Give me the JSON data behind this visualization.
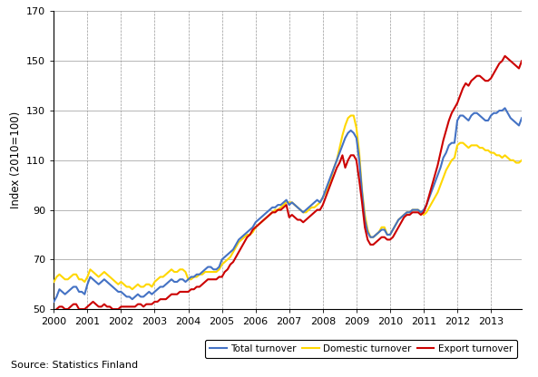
{
  "title": "",
  "ylabel": "Index (2010=100)",
  "ylim": [
    50,
    170
  ],
  "yticks": [
    50,
    70,
    90,
    110,
    130,
    150,
    170
  ],
  "xlim": [
    2000.0,
    2013.92
  ],
  "xticks": [
    2000,
    2001,
    2002,
    2003,
    2004,
    2005,
    2006,
    2007,
    2008,
    2009,
    2010,
    2011,
    2012,
    2013
  ],
  "source_text": "Source: Statistics Finland",
  "legend_labels": [
    "Total turnover",
    "Domestic turnover",
    "Export turnover"
  ],
  "line_colors": [
    "#4472C4",
    "#FFD700",
    "#CC0000"
  ],
  "line_width": 1.5,
  "background_color": "#FFFFFF",
  "total_turnover": [
    53,
    55,
    58,
    57,
    56,
    57,
    58,
    59,
    59,
    57,
    57,
    56,
    60,
    63,
    62,
    61,
    60,
    61,
    62,
    61,
    60,
    59,
    58,
    57,
    57,
    56,
    55,
    55,
    54,
    55,
    56,
    55,
    55,
    56,
    57,
    56,
    57,
    58,
    59,
    59,
    60,
    61,
    62,
    61,
    61,
    62,
    62,
    61,
    62,
    63,
    63,
    64,
    64,
    65,
    66,
    67,
    67,
    66,
    66,
    67,
    70,
    71,
    72,
    73,
    74,
    76,
    78,
    79,
    80,
    81,
    82,
    83,
    85,
    86,
    87,
    88,
    89,
    90,
    91,
    91,
    92,
    92,
    93,
    94,
    92,
    93,
    92,
    91,
    90,
    89,
    90,
    91,
    92,
    93,
    94,
    93,
    95,
    98,
    101,
    104,
    107,
    110,
    113,
    116,
    119,
    121,
    122,
    121,
    119,
    110,
    97,
    86,
    81,
    79,
    79,
    80,
    81,
    82,
    82,
    80,
    80,
    82,
    84,
    86,
    87,
    88,
    89,
    89,
    90,
    90,
    90,
    89,
    90,
    92,
    95,
    98,
    101,
    104,
    107,
    111,
    113,
    116,
    117,
    117,
    126,
    128,
    128,
    127,
    126,
    128,
    129,
    129,
    128,
    127,
    126,
    126,
    128,
    129,
    129,
    130,
    130,
    131,
    129,
    127,
    126,
    125,
    124,
    127
  ],
  "domestic_turnover": [
    61,
    63,
    64,
    63,
    62,
    62,
    63,
    64,
    64,
    62,
    62,
    61,
    63,
    66,
    65,
    64,
    63,
    64,
    65,
    64,
    63,
    62,
    61,
    60,
    61,
    60,
    59,
    59,
    58,
    59,
    60,
    59,
    59,
    60,
    60,
    59,
    61,
    62,
    63,
    63,
    64,
    65,
    66,
    65,
    65,
    66,
    66,
    65,
    62,
    62,
    63,
    63,
    64,
    64,
    65,
    65,
    65,
    65,
    65,
    66,
    68,
    69,
    70,
    71,
    73,
    75,
    77,
    78,
    79,
    80,
    80,
    81,
    83,
    84,
    85,
    86,
    87,
    88,
    89,
    90,
    90,
    91,
    92,
    93,
    93,
    93,
    92,
    91,
    90,
    89,
    89,
    90,
    91,
    91,
    92,
    93,
    95,
    97,
    100,
    103,
    107,
    110,
    115,
    120,
    124,
    127,
    128,
    128,
    123,
    113,
    98,
    88,
    82,
    79,
    79,
    80,
    81,
    83,
    83,
    80,
    80,
    82,
    84,
    86,
    87,
    88,
    89,
    89,
    90,
    90,
    90,
    89,
    88,
    89,
    91,
    93,
    95,
    97,
    100,
    103,
    106,
    108,
    110,
    111,
    116,
    117,
    117,
    116,
    115,
    116,
    116,
    116,
    115,
    115,
    114,
    114,
    113,
    113,
    112,
    112,
    111,
    112,
    111,
    110,
    110,
    109,
    109,
    110
  ],
  "export_turnover": [
    49,
    50,
    51,
    51,
    50,
    50,
    51,
    52,
    52,
    50,
    50,
    50,
    51,
    52,
    53,
    52,
    51,
    51,
    52,
    51,
    51,
    50,
    50,
    50,
    51,
    51,
    51,
    51,
    51,
    51,
    52,
    52,
    51,
    52,
    52,
    52,
    53,
    53,
    54,
    54,
    54,
    55,
    56,
    56,
    56,
    57,
    57,
    57,
    57,
    58,
    58,
    59,
    59,
    60,
    61,
    62,
    62,
    62,
    62,
    63,
    63,
    65,
    66,
    68,
    69,
    71,
    73,
    75,
    77,
    79,
    80,
    82,
    83,
    84,
    85,
    86,
    87,
    88,
    89,
    89,
    90,
    90,
    91,
    92,
    87,
    88,
    87,
    86,
    86,
    85,
    86,
    87,
    88,
    89,
    90,
    90,
    92,
    95,
    98,
    101,
    104,
    107,
    109,
    112,
    107,
    110,
    112,
    112,
    110,
    102,
    93,
    83,
    78,
    76,
    76,
    77,
    78,
    79,
    79,
    78,
    78,
    79,
    81,
    83,
    85,
    87,
    88,
    88,
    89,
    89,
    89,
    88,
    89,
    92,
    96,
    100,
    104,
    108,
    113,
    118,
    122,
    126,
    129,
    131,
    133,
    136,
    139,
    141,
    140,
    142,
    143,
    144,
    144,
    143,
    142,
    142,
    143,
    145,
    147,
    149,
    150,
    152,
    151,
    150,
    149,
    148,
    147,
    150
  ]
}
